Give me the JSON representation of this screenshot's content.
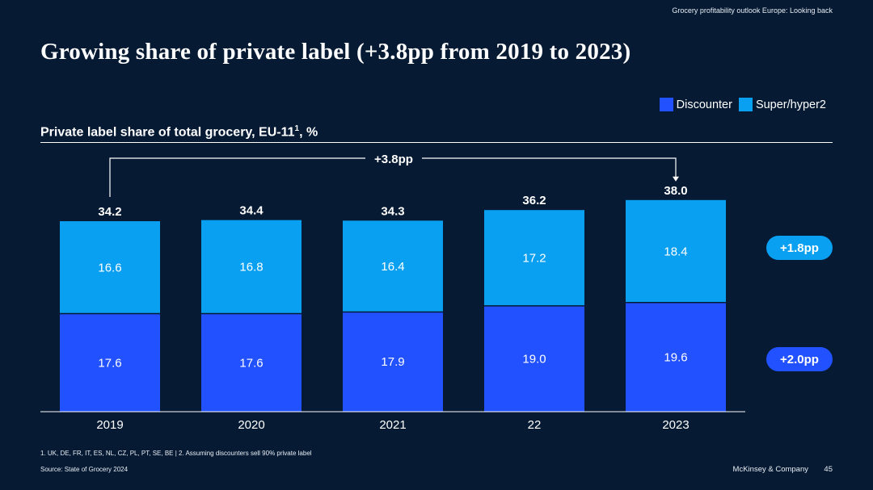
{
  "header": {
    "tag": "Grocery profitability outlook Europe: Looking back"
  },
  "title": "Growing share of private label (+3.8pp from 2019 to 2023)",
  "chart_subtitle": {
    "text": "Private label share of total grocery, EU-11",
    "sup": "1",
    "suffix": ", %"
  },
  "colors": {
    "background": "#061a33",
    "discounter": "#2251ff",
    "super_hyper": "#0aa0f2",
    "pill_top": "#0aa0f2",
    "pill_bottom": "#2251ff"
  },
  "chart_data": {
    "type": "bar",
    "stacked": true,
    "categories": [
      "2019",
      "2020",
      "2021",
      "22",
      "2023"
    ],
    "series": [
      {
        "name": "Discounter",
        "values": [
          17.6,
          17.6,
          17.9,
          19.0,
          19.6
        ],
        "value_labels": [
          "17.6",
          "17.6",
          "17.9",
          "19.0",
          "19.6"
        ]
      },
      {
        "name": "Super/hyper2",
        "values": [
          16.6,
          16.8,
          16.4,
          17.2,
          18.4
        ],
        "value_labels": [
          "16.6",
          "16.8",
          "16.4",
          "17.2",
          "18.4"
        ]
      }
    ],
    "totals": [
      34.2,
      34.4,
      34.3,
      36.2,
      38.0
    ],
    "total_labels": [
      "34.2",
      "34.4",
      "34.3",
      "36.2",
      "38.0"
    ],
    "ylim": [
      0,
      40
    ],
    "annotation": {
      "text": "+3.8pp",
      "from_category": "2019",
      "to_category": "2023"
    },
    "deltas": {
      "super_hyper": "+1.8pp",
      "discounter": "+2.0pp"
    }
  },
  "legend": {
    "discounter": "Discounter",
    "super_hyper": "Super/hyper2"
  },
  "footnote": "1.    UK, DE, FR, IT, ES, NL, CZ, PL, PT, SE, BE | 2.   Assuming discounters sell 90% private label",
  "source": "Source: State of Grocery 2024",
  "brand": "McKinsey & Company",
  "page_number": "45"
}
